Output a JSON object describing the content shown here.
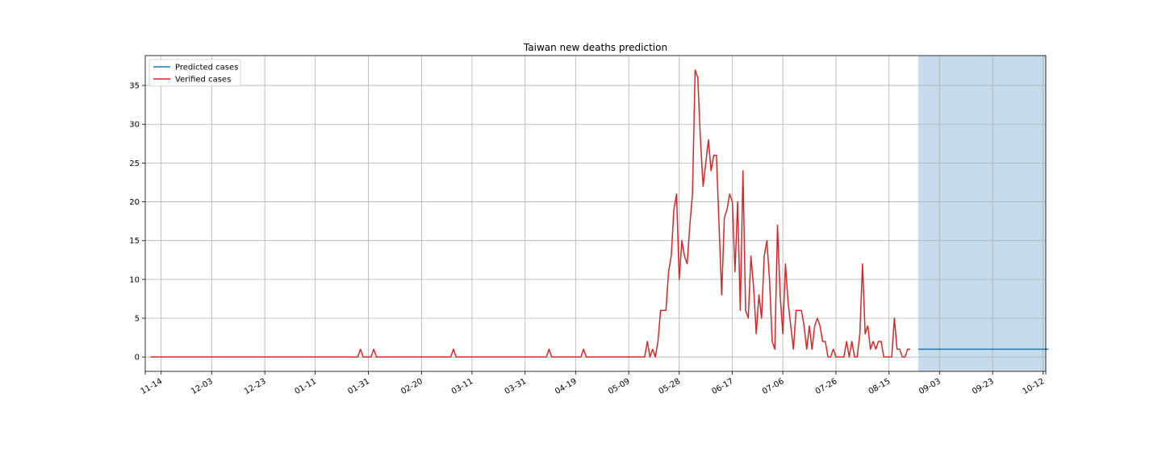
{
  "chart_data": {
    "type": "line",
    "title": "Taiwan new deaths prediction",
    "xlabel": "",
    "ylabel": "",
    "x_start": "11-10",
    "x_tick_labels": [
      "11-14",
      "12-03",
      "12-23",
      "01-11",
      "01-31",
      "02-20",
      "03-11",
      "03-31",
      "04-19",
      "05-09",
      "05-28",
      "06-17",
      "07-06",
      "07-26",
      "08-15",
      "09-03",
      "09-23",
      "10-12"
    ],
    "y_ticks": [
      0,
      5,
      10,
      15,
      20,
      25,
      30,
      35
    ],
    "ylim": [
      -1.85,
      38.85
    ],
    "grid": true,
    "legend_position": "top-left",
    "forecast_band": {
      "start": "08-26",
      "end": "10-13",
      "color": "#c6dbec"
    },
    "series": [
      {
        "name": "Verified cases",
        "color": "#d62728",
        "x_start": "11-10",
        "values": [
          0,
          0,
          0,
          0,
          0,
          0,
          0,
          0,
          0,
          0,
          0,
          0,
          0,
          0,
          0,
          0,
          0,
          0,
          0,
          0,
          0,
          0,
          0,
          0,
          0,
          0,
          0,
          0,
          0,
          0,
          0,
          0,
          0,
          0,
          0,
          0,
          0,
          0,
          0,
          0,
          0,
          0,
          0,
          0,
          0,
          0,
          0,
          0,
          0,
          0,
          0,
          0,
          0,
          0,
          0,
          0,
          0,
          0,
          0,
          0,
          0,
          0,
          0,
          0,
          0,
          0,
          0,
          0,
          0,
          0,
          0,
          0,
          0,
          0,
          0,
          0,
          0,
          0,
          0,
          1,
          0,
          0,
          0,
          0,
          1,
          0,
          0,
          0,
          0,
          0,
          0,
          0,
          0,
          0,
          0,
          0,
          0,
          0,
          0,
          0,
          0,
          0,
          0,
          0,
          0,
          0,
          0,
          0,
          0,
          0,
          0,
          0,
          0,
          0,
          1,
          0,
          0,
          0,
          0,
          0,
          0,
          0,
          0,
          0,
          0,
          0,
          0,
          0,
          0,
          0,
          0,
          0,
          0,
          0,
          0,
          0,
          0,
          0,
          0,
          0,
          0,
          0,
          0,
          0,
          0,
          0,
          0,
          0,
          0,
          0,
          1,
          0,
          0,
          0,
          0,
          0,
          0,
          0,
          0,
          0,
          0,
          0,
          0,
          1,
          0,
          0,
          0,
          0,
          0,
          0,
          0,
          0,
          0,
          0,
          0,
          0,
          0,
          0,
          0,
          0,
          0,
          0,
          0,
          0,
          0,
          0,
          0,
          2,
          0,
          1,
          0,
          2,
          6,
          6,
          6,
          11,
          13,
          19,
          21,
          10,
          15,
          13,
          12,
          17,
          21,
          37,
          36,
          28,
          22,
          25,
          28,
          24,
          26,
          26,
          17,
          8,
          18,
          19,
          21,
          20,
          11,
          20,
          6,
          24,
          6,
          5,
          13,
          9,
          3,
          8,
          5,
          13,
          15,
          10,
          2,
          1,
          17,
          8,
          3,
          12,
          7,
          4,
          1,
          6,
          6,
          6,
          4,
          1,
          4,
          1,
          4,
          5,
          4,
          2,
          2,
          0,
          0,
          1,
          0,
          0,
          0,
          0,
          2,
          0,
          2,
          0,
          0,
          3,
          12,
          3,
          4,
          1,
          2,
          1,
          2,
          2,
          0,
          0,
          0,
          0,
          5,
          1,
          1,
          0,
          0,
          1,
          1
        ]
      },
      {
        "name": "Predicted cases",
        "color": "#1f77b4",
        "x_start": "08-26",
        "values": [
          1,
          1,
          1,
          1,
          1,
          1,
          1,
          1,
          1,
          1,
          1,
          1,
          1,
          1,
          1,
          1,
          1,
          1,
          1,
          1,
          1,
          1,
          1,
          1,
          1,
          1,
          1,
          1,
          1,
          1,
          1,
          1,
          1,
          1,
          1,
          1,
          1,
          1,
          1,
          1,
          1,
          1,
          1,
          1,
          1,
          1,
          1,
          1,
          1,
          1
        ]
      }
    ]
  }
}
